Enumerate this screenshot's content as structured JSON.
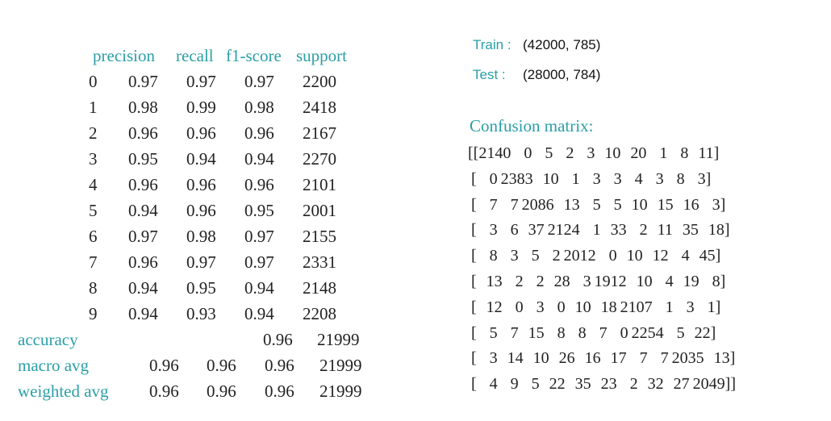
{
  "report": {
    "headers": [
      "precision",
      "recall",
      "f1-score",
      "support"
    ],
    "rows": [
      {
        "label": "0",
        "precision": "0.97",
        "recall": "0.97",
        "f1": "0.97",
        "support": "2200"
      },
      {
        "label": "1",
        "precision": "0.98",
        "recall": "0.99",
        "f1": "0.98",
        "support": "2418"
      },
      {
        "label": "2",
        "precision": "0.96",
        "recall": "0.96",
        "f1": "0.96",
        "support": "2167"
      },
      {
        "label": "3",
        "precision": "0.95",
        "recall": "0.94",
        "f1": "0.94",
        "support": "2270"
      },
      {
        "label": "4",
        "precision": "0.96",
        "recall": "0.96",
        "f1": "0.96",
        "support": "2101"
      },
      {
        "label": "5",
        "precision": "0.94",
        "recall": "0.96",
        "f1": "0.95",
        "support": "2001"
      },
      {
        "label": "6",
        "precision": "0.97",
        "recall": "0.98",
        "f1": "0.97",
        "support": "2155"
      },
      {
        "label": "7",
        "precision": "0.96",
        "recall": "0.97",
        "f1": "0.97",
        "support": "2331"
      },
      {
        "label": "8",
        "precision": "0.94",
        "recall": "0.95",
        "f1": "0.94",
        "support": "2148"
      },
      {
        "label": "9",
        "precision": "0.94",
        "recall": "0.93",
        "f1": "0.94",
        "support": "2208"
      }
    ],
    "accuracy": {
      "label": "accuracy",
      "f1": "0.96",
      "support": "21999"
    },
    "macro": {
      "label": "macro avg",
      "precision": "0.96",
      "recall": "0.96",
      "f1": "0.96",
      "support": "21999"
    },
    "weighted": {
      "label": "weighted avg",
      "precision": "0.96",
      "recall": "0.96",
      "f1": "0.96",
      "support": "21999"
    }
  },
  "shapes": {
    "train_label": "Train :",
    "train_value": "(42000, 785)",
    "test_label": "Test :",
    "test_value": "(28000, 784)"
  },
  "confusion": {
    "title": "Confusion matrix:",
    "rows": [
      "[[2140    0    5    2    3   10   20    1    8   11]",
      " [    0 2383   10    1    3    3    4    3    8    3]",
      " [    7    7 2086   13    5    5   10   15   16    3]",
      " [    3    6   37 2124    1   33    2   11   35   18]",
      " [    8    3    5    2 2012    0   10   12    4   45]",
      " [   13    2    2   28    3 1912   10    4   19    8]",
      " [   12    0    3    0   10   18 2107    1    3    1]",
      " [    5    7   15    8    8    7    0 2254    5   22]",
      " [    3   14   10   26   16   17    7    7 2035   13]",
      " [    4    9    5   22   35   23    2   32   27 2049]]"
    ],
    "matrix": [
      [
        2140,
        0,
        5,
        2,
        3,
        10,
        20,
        1,
        8,
        11
      ],
      [
        0,
        2383,
        10,
        1,
        3,
        3,
        4,
        3,
        8,
        3
      ],
      [
        7,
        7,
        2086,
        13,
        5,
        5,
        10,
        15,
        16,
        3
      ],
      [
        3,
        6,
        37,
        2124,
        1,
        33,
        2,
        11,
        35,
        18
      ],
      [
        8,
        3,
        5,
        2,
        2012,
        0,
        10,
        12,
        4,
        45
      ],
      [
        13,
        2,
        2,
        28,
        3,
        1912,
        10,
        4,
        19,
        8
      ],
      [
        12,
        0,
        3,
        0,
        10,
        18,
        2107,
        1,
        3,
        1
      ],
      [
        5,
        7,
        15,
        8,
        8,
        7,
        0,
        2254,
        5,
        22
      ],
      [
        3,
        14,
        10,
        26,
        16,
        17,
        7,
        7,
        2035,
        13
      ],
      [
        4,
        9,
        5,
        22,
        35,
        23,
        2,
        32,
        27,
        2049
      ]
    ]
  }
}
